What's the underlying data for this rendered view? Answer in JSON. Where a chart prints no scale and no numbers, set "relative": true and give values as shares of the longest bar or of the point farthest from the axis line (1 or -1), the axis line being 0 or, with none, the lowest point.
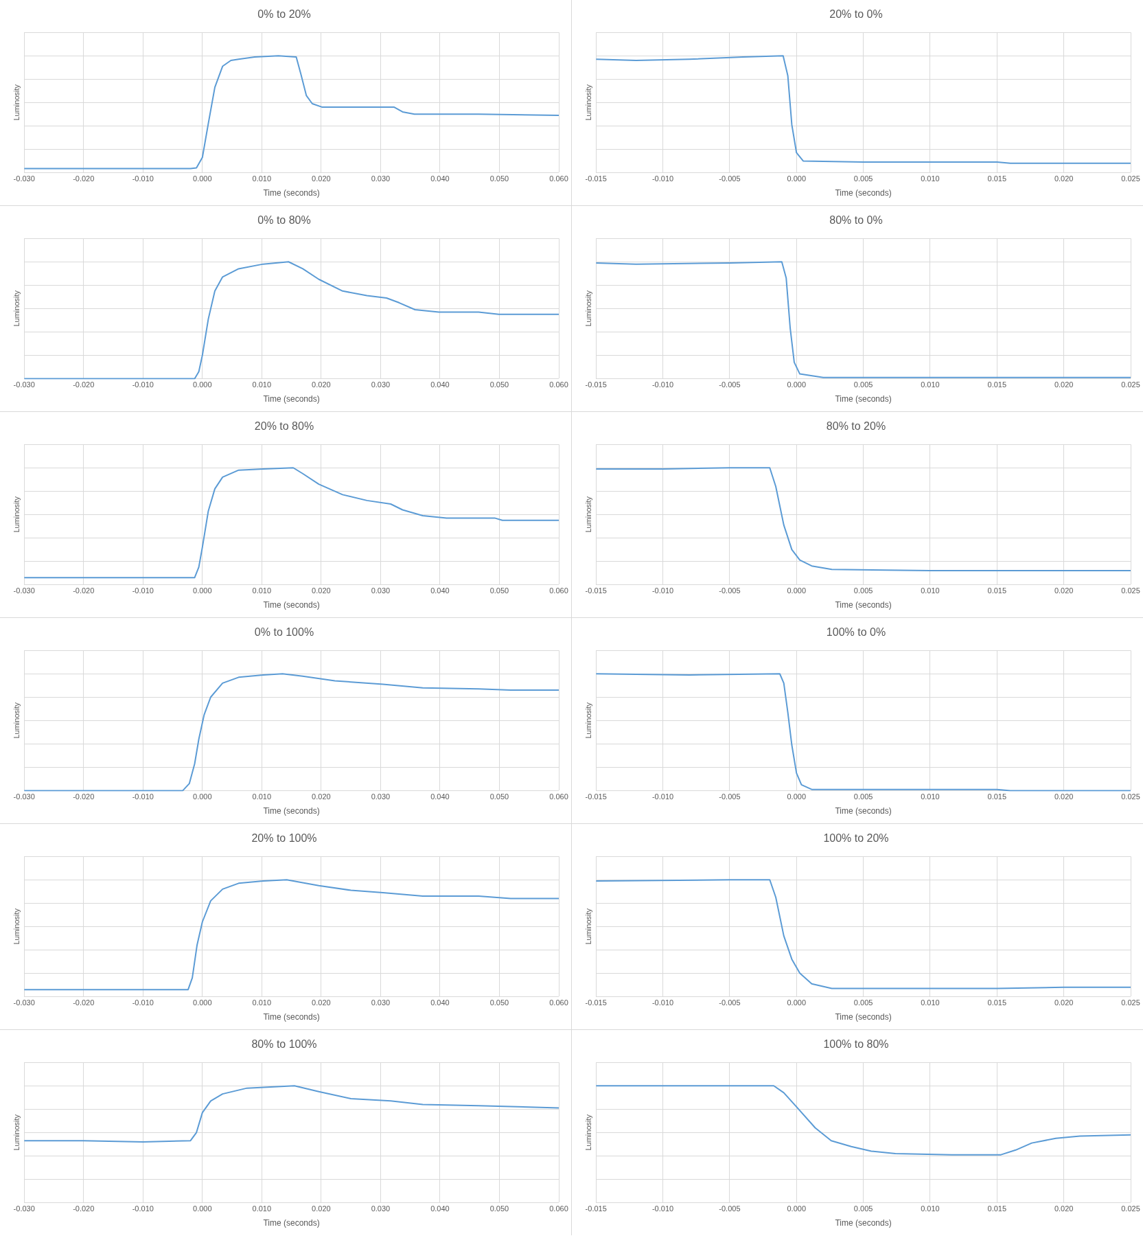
{
  "chart_data": [
    {
      "type": "line",
      "title": "0% to 20%",
      "xlabel": "Time (seconds)",
      "ylabel": "Luminosity",
      "relative": true,
      "grid": true,
      "legend": false,
      "marker": "none",
      "color": "#5b9bd5",
      "xlim": [
        -0.03,
        0.06
      ],
      "xticks": [
        {
          "value": -0.03,
          "label": "-0.030"
        },
        {
          "value": -0.02,
          "label": "-0.020"
        },
        {
          "value": -0.01,
          "label": "-0.010"
        },
        {
          "value": 0,
          "label": "0.000"
        },
        {
          "value": 0.01,
          "label": "0.010"
        },
        {
          "value": 0.02,
          "label": "0.020"
        },
        {
          "value": 0.03,
          "label": "0.030"
        },
        {
          "value": 0.04,
          "label": "0.040"
        },
        {
          "value": 0.05,
          "label": "0.050"
        },
        {
          "value": 0.06,
          "label": "0.060"
        }
      ],
      "x": [
        -0.03,
        -0.01,
        -0.002,
        -0.001,
        0,
        0.001,
        0.0021,
        0.0034,
        0.0048,
        0.0061,
        0.0088,
        0.0128,
        0.0158,
        0.0166,
        0.0175,
        0.0185,
        0.0202,
        0.0263,
        0.0323,
        0.0337,
        0.0357,
        0.0465,
        0.06
      ],
      "values": [
        0.035,
        0.035,
        0.035,
        0.04,
        0.13,
        0.42,
        0.73,
        0.91,
        0.96,
        0.97,
        0.99,
        1,
        0.99,
        0.84,
        0.66,
        0.59,
        0.56,
        0.56,
        0.56,
        0.52,
        0.5,
        0.5,
        0.49
      ]
    },
    {
      "type": "line",
      "title": "20% to 0%",
      "xlabel": "Time (seconds)",
      "ylabel": "Luminosity",
      "relative": true,
      "grid": true,
      "legend": false,
      "marker": "none",
      "color": "#5b9bd5",
      "xlim": [
        -0.015,
        0.025
      ],
      "xticks": [
        {
          "value": -0.015,
          "label": "-0.015"
        },
        {
          "value": -0.01,
          "label": "-0.010"
        },
        {
          "value": -0.005,
          "label": "-0.005"
        },
        {
          "value": 0,
          "label": "0.000"
        },
        {
          "value": 0.005,
          "label": "0.005"
        },
        {
          "value": 0.01,
          "label": "0.010"
        },
        {
          "value": 0.015,
          "label": "0.015"
        },
        {
          "value": 0.02,
          "label": "0.020"
        },
        {
          "value": 0.025,
          "label": "0.025"
        }
      ],
      "x": [
        -0.015,
        -0.012,
        -0.008,
        -0.004,
        -0.001,
        -0.00065,
        -0.00035,
        0,
        0.0005,
        0.005,
        0.015,
        0.016,
        0.025
      ],
      "values": [
        0.97,
        0.96,
        0.97,
        0.99,
        1,
        0.83,
        0.41,
        0.17,
        0.1,
        0.09,
        0.09,
        0.08,
        0.08
      ]
    },
    {
      "type": "line",
      "title": "0% to 80%",
      "xlabel": "Time (seconds)",
      "ylabel": "Luminosity",
      "relative": true,
      "grid": true,
      "legend": false,
      "marker": "none",
      "color": "#5b9bd5",
      "xlim": [
        -0.03,
        0.06
      ],
      "xticks": [
        {
          "value": -0.03,
          "label": "-0.030"
        },
        {
          "value": -0.02,
          "label": "-0.020"
        },
        {
          "value": -0.01,
          "label": "-0.010"
        },
        {
          "value": 0,
          "label": "0.000"
        },
        {
          "value": 0.01,
          "label": "0.010"
        },
        {
          "value": 0.02,
          "label": "0.020"
        },
        {
          "value": 0.03,
          "label": "0.030"
        },
        {
          "value": 0.04,
          "label": "0.040"
        },
        {
          "value": 0.05,
          "label": "0.050"
        },
        {
          "value": 0.06,
          "label": "0.060"
        }
      ],
      "x": [
        -0.03,
        -0.01,
        -0.0013,
        -0.0006,
        0,
        0.001,
        0.0021,
        0.0034,
        0.0061,
        0.0102,
        0.0145,
        0.0169,
        0.0196,
        0.0236,
        0.0277,
        0.031,
        0.0331,
        0.0358,
        0.0398,
        0.0465,
        0.0499,
        0.06
      ],
      "values": [
        0,
        0,
        0,
        0.06,
        0.2,
        0.51,
        0.75,
        0.87,
        0.94,
        0.98,
        1,
        0.94,
        0.85,
        0.75,
        0.71,
        0.69,
        0.65,
        0.59,
        0.57,
        0.57,
        0.55,
        0.55
      ]
    },
    {
      "type": "line",
      "title": "80% to 0%",
      "xlabel": "Time (seconds)",
      "ylabel": "Luminosity",
      "relative": true,
      "grid": true,
      "legend": false,
      "marker": "none",
      "color": "#5b9bd5",
      "xlim": [
        -0.015,
        0.025
      ],
      "xticks": [
        {
          "value": -0.015,
          "label": "-0.015"
        },
        {
          "value": -0.01,
          "label": "-0.010"
        },
        {
          "value": -0.005,
          "label": "-0.005"
        },
        {
          "value": 0,
          "label": "0.000"
        },
        {
          "value": 0.005,
          "label": "0.005"
        },
        {
          "value": 0.01,
          "label": "0.010"
        },
        {
          "value": 0.015,
          "label": "0.015"
        },
        {
          "value": 0.02,
          "label": "0.020"
        },
        {
          "value": 0.025,
          "label": "0.025"
        }
      ],
      "x": [
        -0.015,
        -0.012,
        -0.005,
        -0.0011,
        -0.00077,
        -0.00047,
        -0.00017,
        0.00025,
        0.002,
        0.025
      ],
      "values": [
        0.99,
        0.98,
        0.99,
        1,
        0.86,
        0.43,
        0.14,
        0.04,
        0.01,
        0.01
      ]
    },
    {
      "type": "line",
      "title": "20% to 80%",
      "xlabel": "Time (seconds)",
      "ylabel": "Luminosity",
      "relative": true,
      "grid": true,
      "legend": false,
      "marker": "none",
      "color": "#5b9bd5",
      "xlim": [
        -0.03,
        0.06
      ],
      "xticks": [
        {
          "value": -0.03,
          "label": "-0.030"
        },
        {
          "value": -0.02,
          "label": "-0.020"
        },
        {
          "value": -0.01,
          "label": "-0.010"
        },
        {
          "value": 0,
          "label": "0.000"
        },
        {
          "value": 0.01,
          "label": "0.010"
        },
        {
          "value": 0.02,
          "label": "0.020"
        },
        {
          "value": 0.03,
          "label": "0.030"
        },
        {
          "value": 0.04,
          "label": "0.040"
        },
        {
          "value": 0.05,
          "label": "0.050"
        },
        {
          "value": 0.06,
          "label": "0.060"
        }
      ],
      "x": [
        -0.03,
        -0.01,
        -0.0013,
        -0.0006,
        0,
        0.001,
        0.0021,
        0.0034,
        0.0061,
        0.0102,
        0.0153,
        0.0169,
        0.0196,
        0.0236,
        0.0277,
        0.0317,
        0.0337,
        0.0371,
        0.0411,
        0.0492,
        0.0505,
        0.06
      ],
      "values": [
        0.06,
        0.06,
        0.06,
        0.15,
        0.32,
        0.63,
        0.82,
        0.92,
        0.98,
        0.99,
        1,
        0.95,
        0.86,
        0.77,
        0.72,
        0.69,
        0.64,
        0.59,
        0.57,
        0.57,
        0.55,
        0.55
      ]
    },
    {
      "type": "line",
      "title": "80% to 20%",
      "xlabel": "Time (seconds)",
      "ylabel": "Luminosity",
      "relative": true,
      "grid": true,
      "legend": false,
      "marker": "none",
      "color": "#5b9bd5",
      "xlim": [
        -0.015,
        0.025
      ],
      "xticks": [
        {
          "value": -0.015,
          "label": "-0.015"
        },
        {
          "value": -0.01,
          "label": "-0.010"
        },
        {
          "value": -0.005,
          "label": "-0.005"
        },
        {
          "value": 0,
          "label": "0.000"
        },
        {
          "value": 0.005,
          "label": "0.005"
        },
        {
          "value": 0.01,
          "label": "0.010"
        },
        {
          "value": 0.015,
          "label": "0.015"
        },
        {
          "value": 0.02,
          "label": "0.020"
        },
        {
          "value": 0.025,
          "label": "0.025"
        }
      ],
      "x": [
        -0.015,
        -0.01,
        -0.005,
        -0.002,
        -0.00155,
        -0.00095,
        -0.00035,
        0.00025,
        0.00114,
        0.00264,
        0.01,
        0.025
      ],
      "values": [
        0.99,
        0.99,
        1,
        1,
        0.84,
        0.51,
        0.3,
        0.21,
        0.16,
        0.13,
        0.12,
        0.12
      ]
    },
    {
      "type": "line",
      "title": "0% to 100%",
      "xlabel": "Time (seconds)",
      "ylabel": "Luminosity",
      "relative": true,
      "grid": true,
      "legend": false,
      "marker": "none",
      "color": "#5b9bd5",
      "xlim": [
        -0.03,
        0.06
      ],
      "xticks": [
        {
          "value": -0.03,
          "label": "-0.030"
        },
        {
          "value": -0.02,
          "label": "-0.020"
        },
        {
          "value": -0.01,
          "label": "-0.010"
        },
        {
          "value": 0,
          "label": "0.000"
        },
        {
          "value": 0.01,
          "label": "0.010"
        },
        {
          "value": 0.02,
          "label": "0.020"
        },
        {
          "value": 0.03,
          "label": "0.030"
        },
        {
          "value": 0.04,
          "label": "0.040"
        },
        {
          "value": 0.05,
          "label": "0.050"
        },
        {
          "value": 0.06,
          "label": "0.060"
        }
      ],
      "x": [
        -0.03,
        -0.01,
        -0.0033,
        -0.0022,
        -0.0013,
        -0.0006,
        0.0003,
        0.0014,
        0.0034,
        0.0061,
        0.0102,
        0.0135,
        0.0169,
        0.0223,
        0.0304,
        0.0371,
        0.0465,
        0.0519,
        0.06
      ],
      "values": [
        0,
        0,
        0,
        0.06,
        0.23,
        0.44,
        0.65,
        0.8,
        0.92,
        0.97,
        0.99,
        1,
        0.98,
        0.94,
        0.91,
        0.88,
        0.87,
        0.86,
        0.86
      ]
    },
    {
      "type": "line",
      "title": "100% to 0%",
      "xlabel": "Time (seconds)",
      "ylabel": "Luminosity",
      "relative": true,
      "grid": true,
      "legend": false,
      "marker": "none",
      "color": "#5b9bd5",
      "xlim": [
        -0.015,
        0.025
      ],
      "xticks": [
        {
          "value": -0.015,
          "label": "-0.015"
        },
        {
          "value": -0.01,
          "label": "-0.010"
        },
        {
          "value": -0.005,
          "label": "-0.005"
        },
        {
          "value": 0,
          "label": "0.000"
        },
        {
          "value": 0.005,
          "label": "0.005"
        },
        {
          "value": 0.01,
          "label": "0.010"
        },
        {
          "value": 0.015,
          "label": "0.015"
        },
        {
          "value": 0.02,
          "label": "0.020"
        },
        {
          "value": 0.025,
          "label": "0.025"
        }
      ],
      "x": [
        -0.015,
        -0.008,
        -0.00125,
        -0.00095,
        -0.00065,
        -0.00035,
        0,
        0.00037,
        0.00114,
        0.015,
        0.016,
        0.025
      ],
      "values": [
        1,
        0.99,
        1,
        0.92,
        0.67,
        0.39,
        0.15,
        0.05,
        0.01,
        0.01,
        0,
        0
      ]
    },
    {
      "type": "line",
      "title": "20% to 100%",
      "xlabel": "Time (seconds)",
      "ylabel": "Luminosity",
      "relative": true,
      "grid": true,
      "legend": false,
      "marker": "none",
      "color": "#5b9bd5",
      "xlim": [
        -0.03,
        0.06
      ],
      "xticks": [
        {
          "value": -0.03,
          "label": "-0.030"
        },
        {
          "value": -0.02,
          "label": "-0.020"
        },
        {
          "value": -0.01,
          "label": "-0.010"
        },
        {
          "value": 0,
          "label": "0.000"
        },
        {
          "value": 0.01,
          "label": "0.010"
        },
        {
          "value": 0.02,
          "label": "0.020"
        },
        {
          "value": 0.03,
          "label": "0.030"
        },
        {
          "value": 0.04,
          "label": "0.040"
        },
        {
          "value": 0.05,
          "label": "0.050"
        },
        {
          "value": 0.06,
          "label": "0.060"
        }
      ],
      "x": [
        -0.03,
        -0.01,
        -0.0024,
        -0.0017,
        -0.0009,
        0,
        0.0014,
        0.0034,
        0.0061,
        0.0102,
        0.0142,
        0.0196,
        0.025,
        0.0304,
        0.0371,
        0.0465,
        0.0519,
        0.06
      ],
      "values": [
        0.06,
        0.06,
        0.06,
        0.16,
        0.44,
        0.64,
        0.82,
        0.92,
        0.97,
        0.99,
        1,
        0.95,
        0.91,
        0.89,
        0.86,
        0.86,
        0.84,
        0.84
      ]
    },
    {
      "type": "line",
      "title": "100% to 20%",
      "xlabel": "Time (seconds)",
      "ylabel": "Luminosity",
      "relative": true,
      "grid": true,
      "legend": false,
      "marker": "none",
      "color": "#5b9bd5",
      "xlim": [
        -0.015,
        0.025
      ],
      "xticks": [
        {
          "value": -0.015,
          "label": "-0.015"
        },
        {
          "value": -0.01,
          "label": "-0.010"
        },
        {
          "value": -0.005,
          "label": "-0.005"
        },
        {
          "value": 0,
          "label": "0.000"
        },
        {
          "value": 0.005,
          "label": "0.005"
        },
        {
          "value": 0.01,
          "label": "0.010"
        },
        {
          "value": 0.015,
          "label": "0.015"
        },
        {
          "value": 0.02,
          "label": "0.020"
        },
        {
          "value": 0.025,
          "label": "0.025"
        }
      ],
      "x": [
        -0.015,
        -0.005,
        -0.002,
        -0.00155,
        -0.00095,
        -0.00035,
        0.00025,
        0.00114,
        0.00264,
        0.01,
        0.015,
        0.02,
        0.025
      ],
      "values": [
        0.99,
        1,
        1,
        0.85,
        0.52,
        0.32,
        0.2,
        0.11,
        0.07,
        0.07,
        0.07,
        0.08,
        0.08
      ]
    },
    {
      "type": "line",
      "title": "80% to 100%",
      "xlabel": "Time (seconds)",
      "ylabel": "Luminosity",
      "relative": true,
      "grid": true,
      "legend": false,
      "marker": "none",
      "color": "#5b9bd5",
      "xlim": [
        -0.03,
        0.06
      ],
      "xticks": [
        {
          "value": -0.03,
          "label": "-0.030"
        },
        {
          "value": -0.02,
          "label": "-0.020"
        },
        {
          "value": -0.01,
          "label": "-0.010"
        },
        {
          "value": 0,
          "label": "0.000"
        },
        {
          "value": 0.01,
          "label": "0.010"
        },
        {
          "value": 0.02,
          "label": "0.020"
        },
        {
          "value": 0.03,
          "label": "0.030"
        },
        {
          "value": 0.04,
          "label": "0.040"
        },
        {
          "value": 0.05,
          "label": "0.050"
        },
        {
          "value": 0.06,
          "label": "0.060"
        }
      ],
      "x": [
        -0.03,
        -0.02,
        -0.01,
        -0.002,
        -0.001,
        0,
        0.0014,
        0.0034,
        0.0075,
        0.0115,
        0.0155,
        0.0196,
        0.025,
        0.0317,
        0.0371,
        0.0465,
        0.06
      ],
      "values": [
        0.53,
        0.53,
        0.52,
        0.53,
        0.6,
        0.77,
        0.87,
        0.93,
        0.98,
        0.99,
        1,
        0.95,
        0.89,
        0.87,
        0.84,
        0.83,
        0.81
      ]
    },
    {
      "type": "line",
      "title": "100% to 80%",
      "xlabel": "Time (seconds)",
      "ylabel": "Luminosity",
      "relative": true,
      "grid": true,
      "legend": false,
      "marker": "none",
      "color": "#5b9bd5",
      "xlim": [
        -0.015,
        0.025
      ],
      "xticks": [
        {
          "value": -0.015,
          "label": "-0.015"
        },
        {
          "value": -0.01,
          "label": "-0.010"
        },
        {
          "value": -0.005,
          "label": "-0.005"
        },
        {
          "value": 0,
          "label": "0.000"
        },
        {
          "value": 0.005,
          "label": "0.005"
        },
        {
          "value": 0.01,
          "label": "0.010"
        },
        {
          "value": 0.015,
          "label": "0.015"
        },
        {
          "value": 0.02,
          "label": "0.020"
        },
        {
          "value": 0.025,
          "label": "0.025"
        }
      ],
      "x": [
        -0.015,
        -0.008,
        -0.0017,
        -0.00095,
        0,
        0.0014,
        0.0026,
        0.0041,
        0.0056,
        0.0074,
        0.0116,
        0.0153,
        0.0164,
        0.0176,
        0.0194,
        0.0212,
        0.025
      ],
      "values": [
        1,
        1,
        1,
        0.94,
        0.82,
        0.64,
        0.53,
        0.48,
        0.44,
        0.42,
        0.41,
        0.41,
        0.45,
        0.51,
        0.55,
        0.57,
        0.58
      ]
    }
  ]
}
